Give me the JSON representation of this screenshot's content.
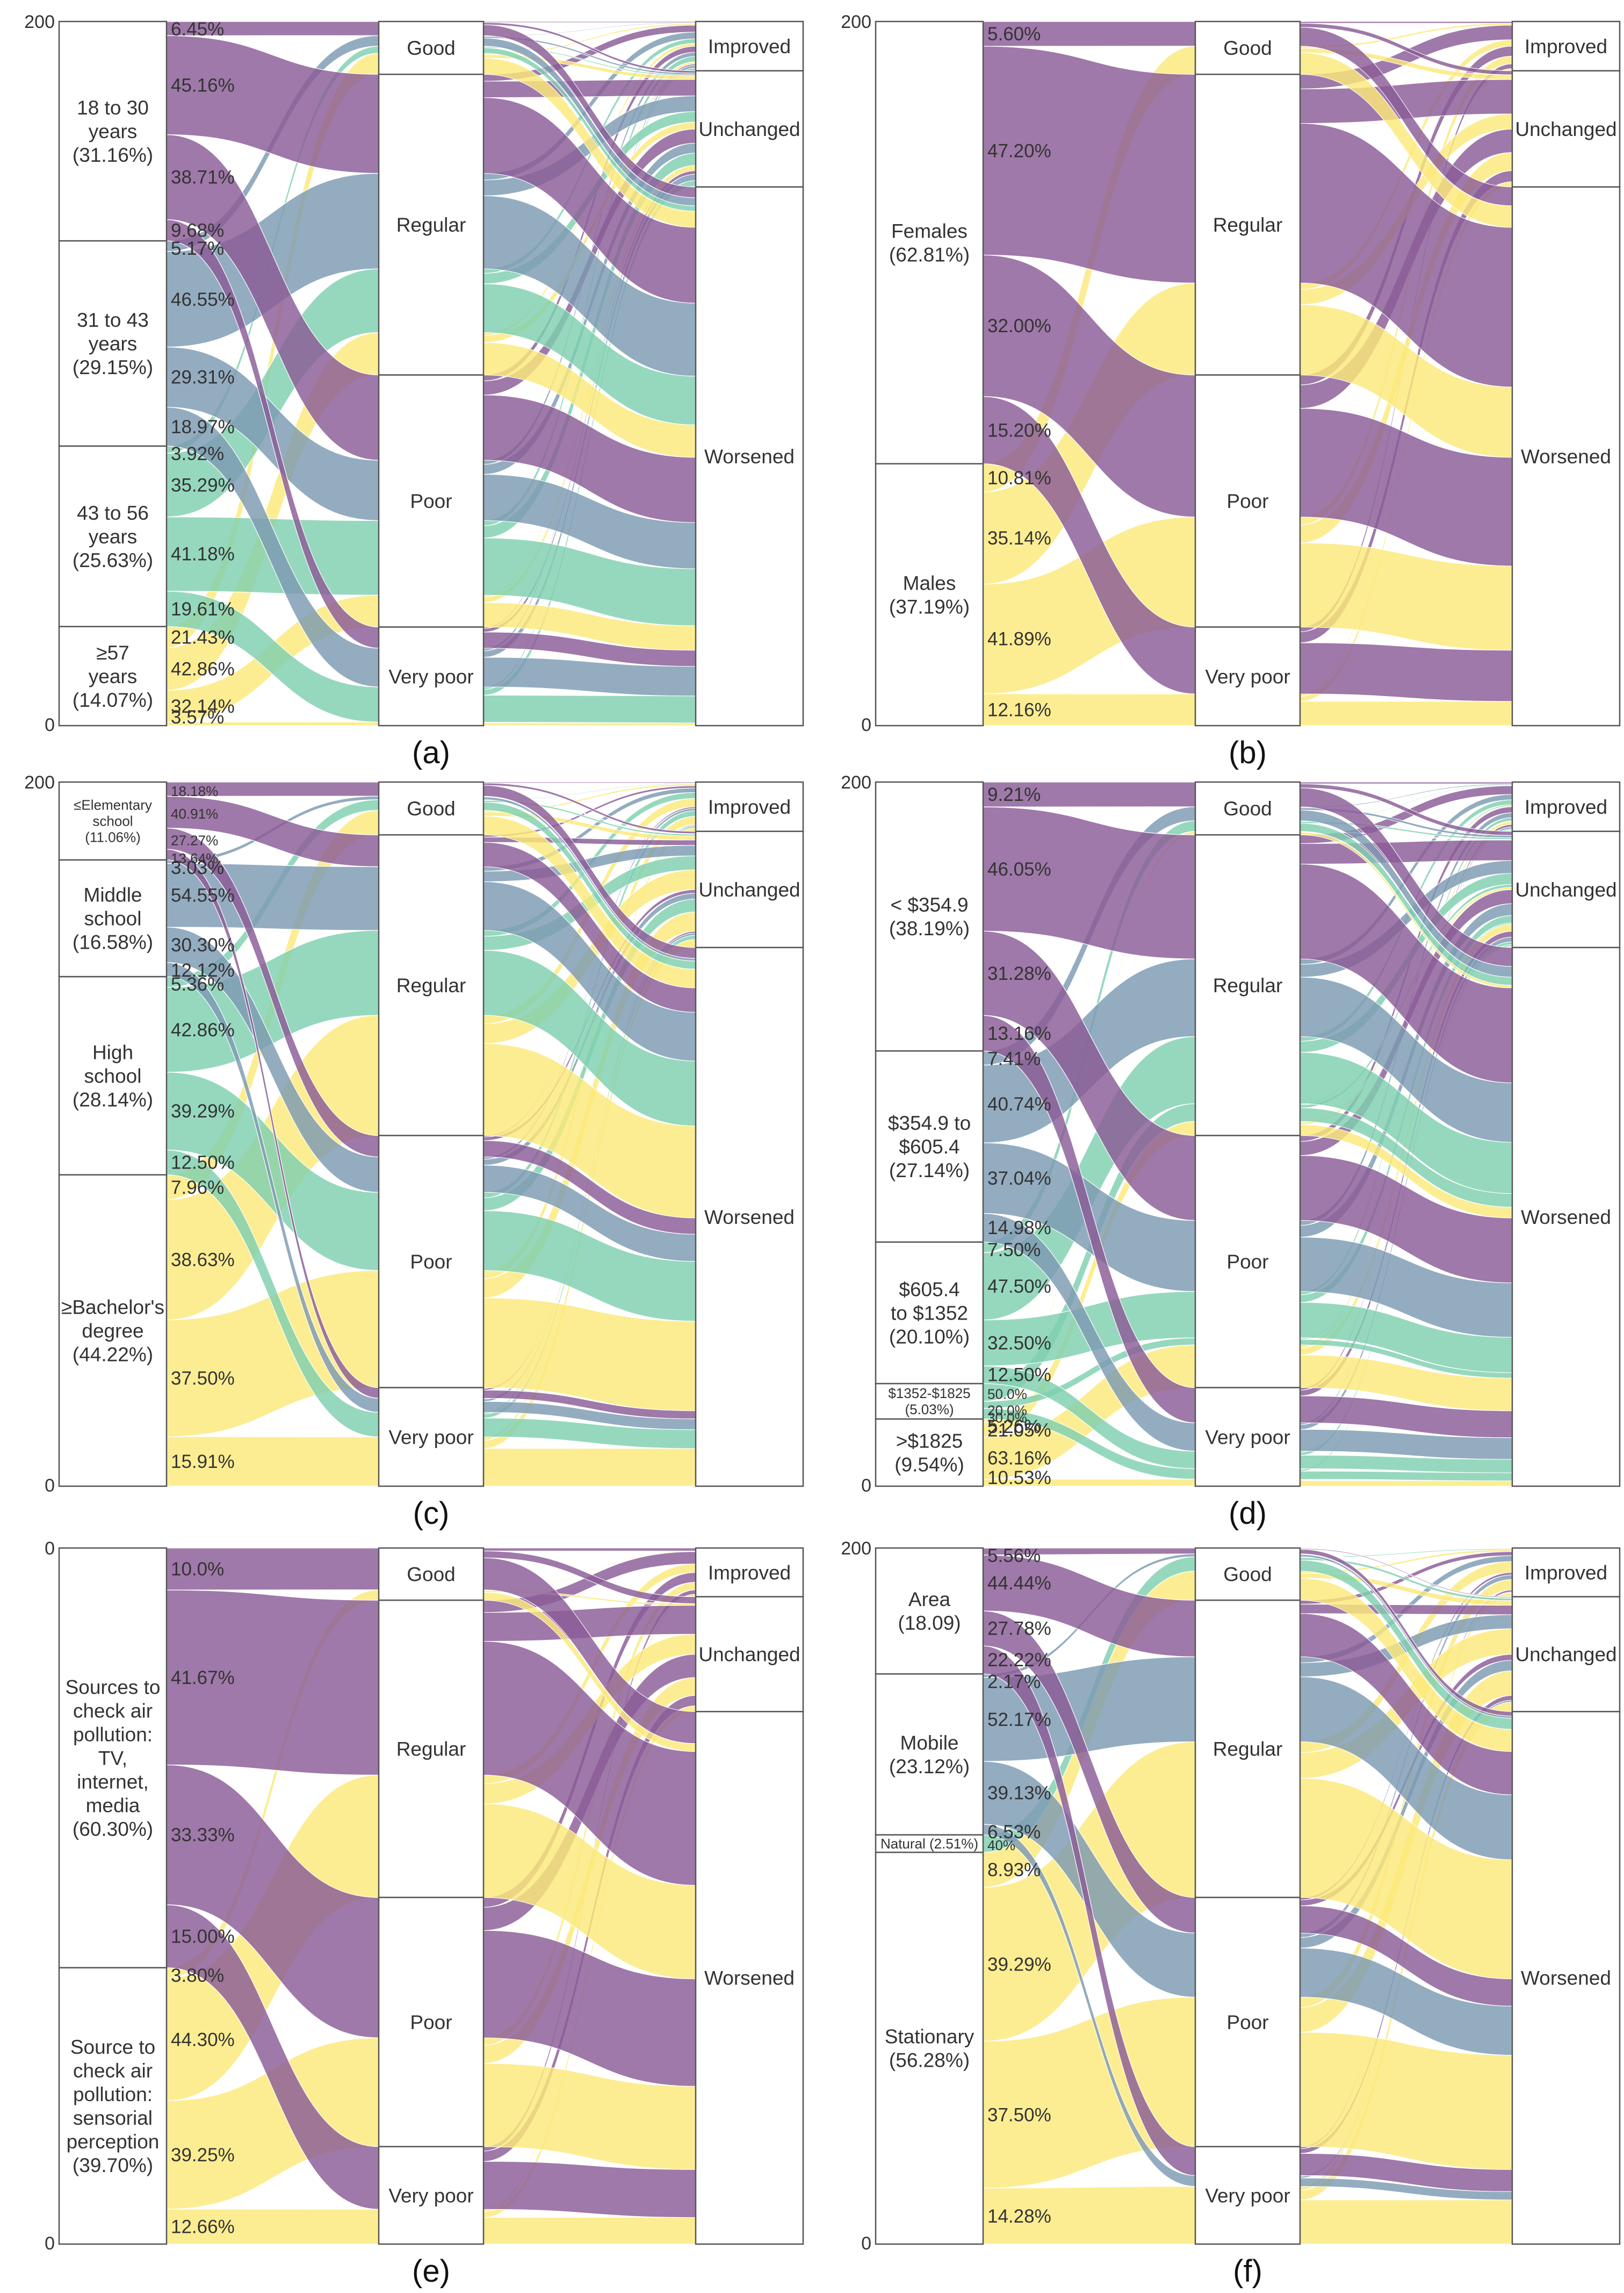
{
  "figure": {
    "colors": {
      "purple": "#8a5c96",
      "blue": "#7d9ab2",
      "teal": "#7fcfb0",
      "yellow": "#fbe97a",
      "node_stroke": "#555555"
    },
    "stage_nodes": [
      "Good",
      "Regular",
      "Poor",
      "Very poor"
    ],
    "outcome_nodes": [
      "Improved",
      "Unchanged",
      "Worsened"
    ]
  },
  "chart_data": [
    {
      "type": "alluvial",
      "panel": "a",
      "caption": "(a)",
      "yaxis_ticks": [
        "200",
        "0"
      ],
      "categories": [
        {
          "label": "18 to 30 years (31.16%)",
          "lines": [
            "18 to 30",
            "years",
            "(31.16%)"
          ],
          "share": 31.16,
          "color": "purple",
          "flows": [
            {
              "label": "6.45%",
              "to": "Good",
              "value": 6.45
            },
            {
              "label": "45.16%",
              "to": "Regular",
              "value": 45.16
            },
            {
              "label": "38.71%",
              "to": "Poor",
              "value": 38.71
            },
            {
              "label": "9.68%",
              "to": "Very poor",
              "value": 9.68
            }
          ]
        },
        {
          "label": "31 to 43 years (29.15%)",
          "lines": [
            "31 to 43",
            "years",
            "(29.15%)"
          ],
          "share": 29.15,
          "color": "blue",
          "flows": [
            {
              "label": "5.17%",
              "to": "Good",
              "value": 5.17
            },
            {
              "label": "46.55%",
              "to": "Regular",
              "value": 46.55
            },
            {
              "label": "29.31%",
              "to": "Poor",
              "value": 29.31
            },
            {
              "label": "18.97%",
              "to": "Very poor",
              "value": 18.97
            }
          ]
        },
        {
          "label": "43 to 56 years (25.63%)",
          "lines": [
            "43 to 56",
            "years",
            "(25.63%)"
          ],
          "share": 25.63,
          "color": "teal",
          "flows": [
            {
              "label": "3.92%",
              "to": "Good",
              "value": 3.92
            },
            {
              "label": "35.29%",
              "to": "Regular",
              "value": 35.29
            },
            {
              "label": "41.18%",
              "to": "Poor",
              "value": 41.18
            },
            {
              "label": "19.61%",
              "to": "Very poor",
              "value": 19.61
            }
          ]
        },
        {
          "label": "≥57 years (14.07%)",
          "lines": [
            "≥57",
            "years",
            "(14.07%)"
          ],
          "share": 14.07,
          "color": "yellow",
          "flows": [
            {
              "label": "21.43%",
              "to": "Good",
              "value": 21.43
            },
            {
              "label": "42.86%",
              "to": "Regular",
              "value": 42.86
            },
            {
              "label": "32.14%",
              "to": "Poor",
              "value": 32.14
            },
            {
              "label": "3.57%",
              "to": "Very poor",
              "value": 3.57
            }
          ]
        }
      ],
      "stages": [
        {
          "label": "Good",
          "share": 7.5
        },
        {
          "label": "Regular",
          "share": 42.7
        },
        {
          "label": "Poor",
          "share": 35.8
        },
        {
          "label": "Very poor",
          "share": 14.0
        }
      ],
      "outcomes": [
        {
          "label": "Improved",
          "share": 7.0
        },
        {
          "label": "Unchanged",
          "share": 16.5
        },
        {
          "label": "Worsened",
          "share": 76.5
        }
      ]
    },
    {
      "type": "alluvial",
      "panel": "b",
      "caption": "(b)",
      "yaxis_ticks": [
        "200",
        "0"
      ],
      "categories": [
        {
          "label": "Females (62.81%)",
          "lines": [
            "Females",
            "(62.81%)"
          ],
          "share": 62.81,
          "color": "purple",
          "flows": [
            {
              "label": "5.60%",
              "to": "Good",
              "value": 5.6
            },
            {
              "label": "47.20%",
              "to": "Regular",
              "value": 47.2
            },
            {
              "label": "32.00%",
              "to": "Poor",
              "value": 32.0
            },
            {
              "label": "15.20%",
              "to": "Very poor",
              "value": 15.2
            }
          ]
        },
        {
          "label": "Males (37.19%)",
          "lines": [
            "Males",
            "(37.19%)"
          ],
          "share": 37.19,
          "color": "yellow",
          "flows": [
            {
              "label": "10.81%",
              "to": "Good",
              "value": 10.81
            },
            {
              "label": "35.14%",
              "to": "Regular",
              "value": 35.14
            },
            {
              "label": "41.89%",
              "to": "Poor",
              "value": 41.89
            },
            {
              "label": "12.16%",
              "to": "Very poor",
              "value": 12.16
            }
          ]
        }
      ],
      "stages": [
        {
          "label": "Good",
          "share": 7.5
        },
        {
          "label": "Regular",
          "share": 42.7
        },
        {
          "label": "Poor",
          "share": 35.8
        },
        {
          "label": "Very poor",
          "share": 14.0
        }
      ],
      "outcomes": [
        {
          "label": "Improved",
          "share": 7.0
        },
        {
          "label": "Unchanged",
          "share": 16.5
        },
        {
          "label": "Worsened",
          "share": 76.5
        }
      ]
    },
    {
      "type": "alluvial",
      "panel": "c",
      "caption": "(c)",
      "yaxis_ticks": [
        "200",
        "0"
      ],
      "categories": [
        {
          "label": "≤Elementary school (11.06%)",
          "lines": [
            "≤Elementary",
            "school",
            "(11.06%)"
          ],
          "share": 11.06,
          "color": "purple",
          "small": true,
          "flows": [
            {
              "label": "18.18%",
              "to": "Good",
              "value": 18.18
            },
            {
              "label": "40.91%",
              "to": "Regular",
              "value": 40.91
            },
            {
              "label": "27.27%",
              "to": "Poor",
              "value": 27.27
            },
            {
              "label": "13.64%",
              "to": "Very poor",
              "value": 13.64
            }
          ]
        },
        {
          "label": "Middle school (16.58%)",
          "lines": [
            "Middle",
            "school",
            "(16.58%)"
          ],
          "share": 16.58,
          "color": "blue",
          "flows": [
            {
              "label": "3.03%",
              "to": "Good",
              "value": 3.03
            },
            {
              "label": "54.55%",
              "to": "Regular",
              "value": 54.55
            },
            {
              "label": "30.30%",
              "to": "Poor",
              "value": 30.3
            },
            {
              "label": "12.12%",
              "to": "Very poor",
              "value": 12.12
            }
          ]
        },
        {
          "label": "High school (28.14%)",
          "lines": [
            "High",
            "school",
            "(28.14%)"
          ],
          "share": 28.14,
          "color": "teal",
          "flows": [
            {
              "label": "5.36%",
              "to": "Good",
              "value": 5.36
            },
            {
              "label": "42.86%",
              "to": "Regular",
              "value": 42.86
            },
            {
              "label": "39.29%",
              "to": "Poor",
              "value": 39.29
            },
            {
              "label": "12.50%",
              "to": "Very poor",
              "value": 12.5
            }
          ]
        },
        {
          "label": "≥Bachelor's degree (44.22%)",
          "lines": [
            "≥Bachelor's",
            "degree",
            "(44.22%)"
          ],
          "share": 44.22,
          "color": "yellow",
          "flows": [
            {
              "label": "7.96%",
              "to": "Good",
              "value": 7.96
            },
            {
              "label": "38.63%",
              "to": "Regular",
              "value": 38.63
            },
            {
              "label": "37.50%",
              "to": "Poor",
              "value": 37.5
            },
            {
              "label": "15.91%",
              "to": "Very poor",
              "value": 15.91
            }
          ]
        }
      ],
      "stages": [
        {
          "label": "Good",
          "share": 7.5
        },
        {
          "label": "Regular",
          "share": 42.7
        },
        {
          "label": "Poor",
          "share": 35.8
        },
        {
          "label": "Very poor",
          "share": 14.0
        }
      ],
      "outcomes": [
        {
          "label": "Improved",
          "share": 7.0
        },
        {
          "label": "Unchanged",
          "share": 16.5
        },
        {
          "label": "Worsened",
          "share": 76.5
        }
      ]
    },
    {
      "type": "alluvial",
      "panel": "d",
      "caption": "(d)",
      "yaxis_ticks": [
        "200",
        "0"
      ],
      "categories": [
        {
          "label": "< $354.9 (38.19%)",
          "lines": [
            "< $354.9",
            "(38.19%)"
          ],
          "share": 38.19,
          "color": "purple",
          "flows": [
            {
              "label": "9.21%",
              "to": "Good",
              "value": 9.21
            },
            {
              "label": "46.05%",
              "to": "Regular",
              "value": 46.05
            },
            {
              "label": "31.28%",
              "to": "Poor",
              "value": 31.28
            },
            {
              "label": "13.16%",
              "to": "Very poor",
              "value": 13.16
            }
          ]
        },
        {
          "label": "$354.9 to $605.4 (27.14%)",
          "lines": [
            "$354.9 to",
            "$605.4",
            "(27.14%)"
          ],
          "share": 27.14,
          "color": "blue",
          "flows": [
            {
              "label": "7.41%",
              "to": "Good",
              "value": 7.41
            },
            {
              "label": "40.74%",
              "to": "Regular",
              "value": 40.74
            },
            {
              "label": "37.04%",
              "to": "Poor",
              "value": 37.04
            },
            {
              "label": "14.98%",
              "to": "Very poor",
              "value": 14.98
            }
          ]
        },
        {
          "label": "$605.4 to $1352 (20.10%)",
          "lines": [
            "$605.4",
            "to $1352",
            "(20.10%)"
          ],
          "share": 20.1,
          "color": "teal",
          "flows": [
            {
              "label": "7.50%",
              "to": "Good",
              "value": 7.5
            },
            {
              "label": "47.50%",
              "to": "Regular",
              "value": 47.5
            },
            {
              "label": "32.50%",
              "to": "Poor",
              "value": 32.5
            },
            {
              "label": "12.50%",
              "to": "Very poor",
              "value": 12.5
            }
          ]
        },
        {
          "label": "$1352-$1825 (5.03%)",
          "lines": [
            "$1352-$1825",
            "(5.03%)"
          ],
          "share": 5.03,
          "color": "teal",
          "small": true,
          "flows": [
            {
              "label": "50.0%",
              "to": "Regular",
              "value": 50.0
            },
            {
              "label": "20.0%",
              "to": "Poor",
              "value": 20.0
            },
            {
              "label": "30.0%",
              "to": "Very poor",
              "value": 30.0
            }
          ]
        },
        {
          "label": ">$1825 (9.54%)",
          "lines": [
            ">$1825",
            "(9.54%)"
          ],
          "share": 9.54,
          "color": "yellow",
          "flows": [
            {
              "label": "5.26%",
              "to": "Good",
              "value": 5.26
            },
            {
              "label": "21.05%",
              "to": "Regular",
              "value": 21.05
            },
            {
              "label": "63.16%",
              "to": "Poor",
              "value": 63.16
            },
            {
              "label": "10.53%",
              "to": "Very poor",
              "value": 10.53
            }
          ]
        }
      ],
      "stages": [
        {
          "label": "Good",
          "share": 7.5
        },
        {
          "label": "Regular",
          "share": 42.7
        },
        {
          "label": "Poor",
          "share": 35.8
        },
        {
          "label": "Very poor",
          "share": 14.0
        }
      ],
      "outcomes": [
        {
          "label": "Improved",
          "share": 7.0
        },
        {
          "label": "Unchanged",
          "share": 16.5
        },
        {
          "label": "Worsened",
          "share": 76.5
        }
      ]
    },
    {
      "type": "alluvial",
      "panel": "e",
      "caption": "(e)",
      "yaxis_ticks": [
        "0",
        "0"
      ],
      "categories": [
        {
          "label": "Sources to check air pollution: TV, internet, media (60.30%)",
          "lines": [
            "Sources to",
            "check air",
            "pollution:",
            "TV,",
            "internet,",
            "media",
            "(60.30%)"
          ],
          "share": 60.3,
          "color": "purple",
          "flows": [
            {
              "label": "10.0%",
              "to": "Good",
              "value": 10.0
            },
            {
              "label": "41.67%",
              "to": "Regular",
              "value": 41.67
            },
            {
              "label": "33.33%",
              "to": "Poor",
              "value": 33.33
            },
            {
              "label": "15.00%",
              "to": "Very poor",
              "value": 15.0
            }
          ]
        },
        {
          "label": "Source to check air pollution: sensorial perception (39.70%)",
          "lines": [
            "Source to",
            "check air",
            "pollution:",
            "sensorial",
            "perception",
            "(39.70%)"
          ],
          "share": 39.7,
          "color": "yellow",
          "flows": [
            {
              "label": "3.80%",
              "to": "Good",
              "value": 3.8
            },
            {
              "label": "44.30%",
              "to": "Regular",
              "value": 44.3
            },
            {
              "label": "39.25%",
              "to": "Poor",
              "value": 39.25
            },
            {
              "label": "12.66%",
              "to": "Very poor",
              "value": 12.66
            }
          ]
        }
      ],
      "stages": [
        {
          "label": "Good",
          "share": 7.5
        },
        {
          "label": "Regular",
          "share": 42.7
        },
        {
          "label": "Poor",
          "share": 35.8
        },
        {
          "label": "Very poor",
          "share": 14.0
        }
      ],
      "outcomes": [
        {
          "label": "Improved",
          "share": 7.0
        },
        {
          "label": "Unchanged",
          "share": 16.5
        },
        {
          "label": "Worsened",
          "share": 76.5
        }
      ]
    },
    {
      "type": "alluvial",
      "panel": "f",
      "caption": "(f)",
      "yaxis_ticks": [
        "200",
        "0"
      ],
      "categories": [
        {
          "label": "Area (18.09)",
          "lines": [
            "Area",
            "(18.09)"
          ],
          "share": 18.09,
          "color": "purple",
          "flows": [
            {
              "label": "5.56%",
              "to": "Good",
              "value": 5.56
            },
            {
              "label": "44.44%",
              "to": "Regular",
              "value": 44.44
            },
            {
              "label": "27.78%",
              "to": "Poor",
              "value": 27.78
            },
            {
              "label": "22.22%",
              "to": "Very poor",
              "value": 22.22
            }
          ]
        },
        {
          "label": "Mobile (23.12%)",
          "lines": [
            "Mobile",
            "(23.12%)"
          ],
          "share": 23.12,
          "color": "blue",
          "flows": [
            {
              "label": "2.17%",
              "to": "Good",
              "value": 2.17
            },
            {
              "label": "52.17%",
              "to": "Regular",
              "value": 52.17
            },
            {
              "label": "39.13%",
              "to": "Poor",
              "value": 39.13
            },
            {
              "label": "6.53%",
              "to": "Very poor",
              "value": 6.53
            }
          ]
        },
        {
          "label": "Natural (2.51%)",
          "lines": [
            "Natural (2.51%)"
          ],
          "share": 2.51,
          "color": "teal",
          "small": true,
          "flows": [
            {
              "label": "40%",
              "to": "Good",
              "value": 40.0
            }
          ]
        },
        {
          "label": "Stationary (56.28%)",
          "lines": [
            "Stationary",
            "(56.28%)"
          ],
          "share": 56.28,
          "color": "yellow",
          "flows": [
            {
              "label": "8.93%",
              "to": "Good",
              "value": 8.93
            },
            {
              "label": "39.29%",
              "to": "Regular",
              "value": 39.29
            },
            {
              "label": "37.50%",
              "to": "Poor",
              "value": 37.5
            },
            {
              "label": "14.28%",
              "to": "Very poor",
              "value": 14.28
            }
          ]
        }
      ],
      "stages": [
        {
          "label": "Good",
          "share": 7.5
        },
        {
          "label": "Regular",
          "share": 42.7
        },
        {
          "label": "Poor",
          "share": 35.8
        },
        {
          "label": "Very poor",
          "share": 14.0
        }
      ],
      "outcomes": [
        {
          "label": "Improved",
          "share": 7.0
        },
        {
          "label": "Unchanged",
          "share": 16.5
        },
        {
          "label": "Worsened",
          "share": 76.5
        }
      ]
    }
  ]
}
